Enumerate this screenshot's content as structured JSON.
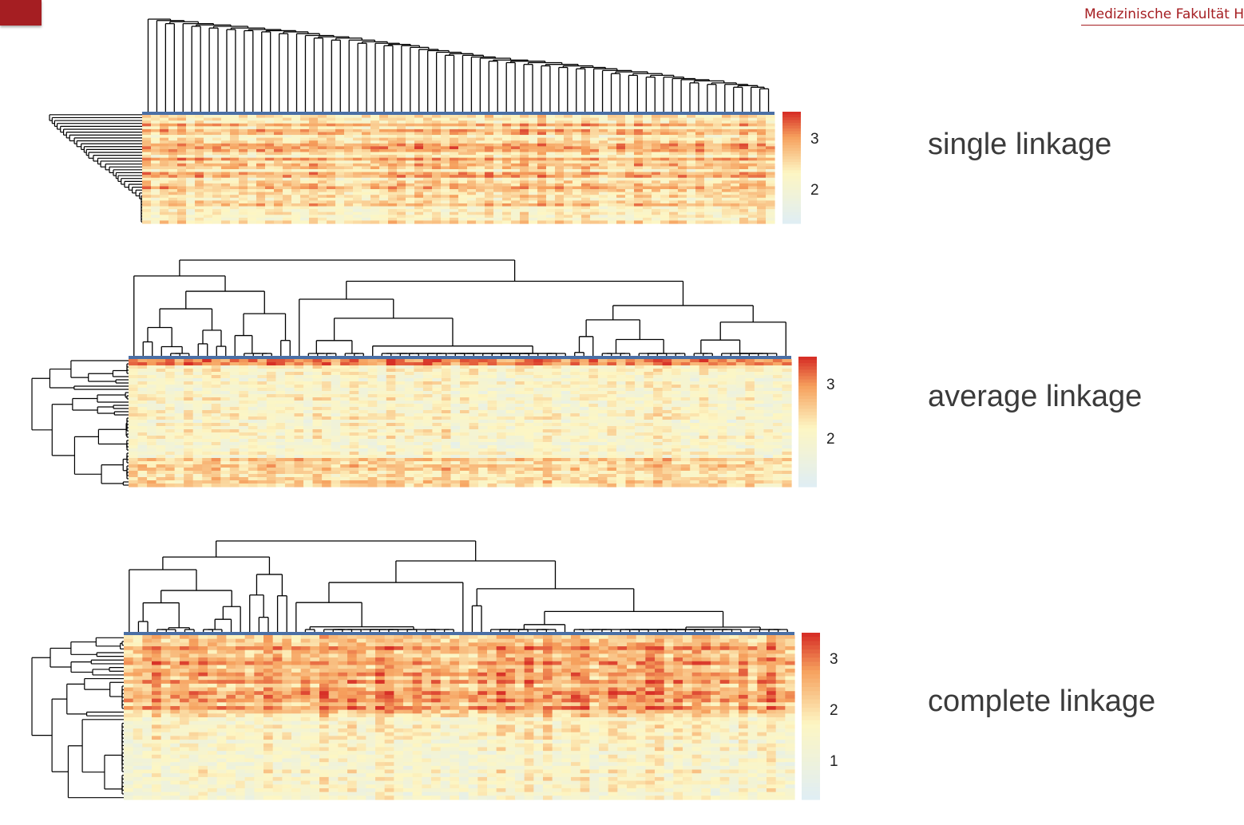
{
  "header": {
    "institution": "Medizinische Fakultät H"
  },
  "panels": [
    {
      "label": "single linkage",
      "legend_ticks": [
        "3",
        "2"
      ]
    },
    {
      "label": "average linkage",
      "legend_ticks": [
        "3",
        "2"
      ]
    },
    {
      "label": "complete linkage",
      "legend_ticks": [
        "3",
        "2",
        "1"
      ]
    }
  ],
  "colors": {
    "brand": "#a51e22",
    "heat_low": "#e0eef3",
    "heat_mid": "#fdf6c3",
    "heat_high": "#d73027",
    "separator": "#4a6fa5"
  }
}
